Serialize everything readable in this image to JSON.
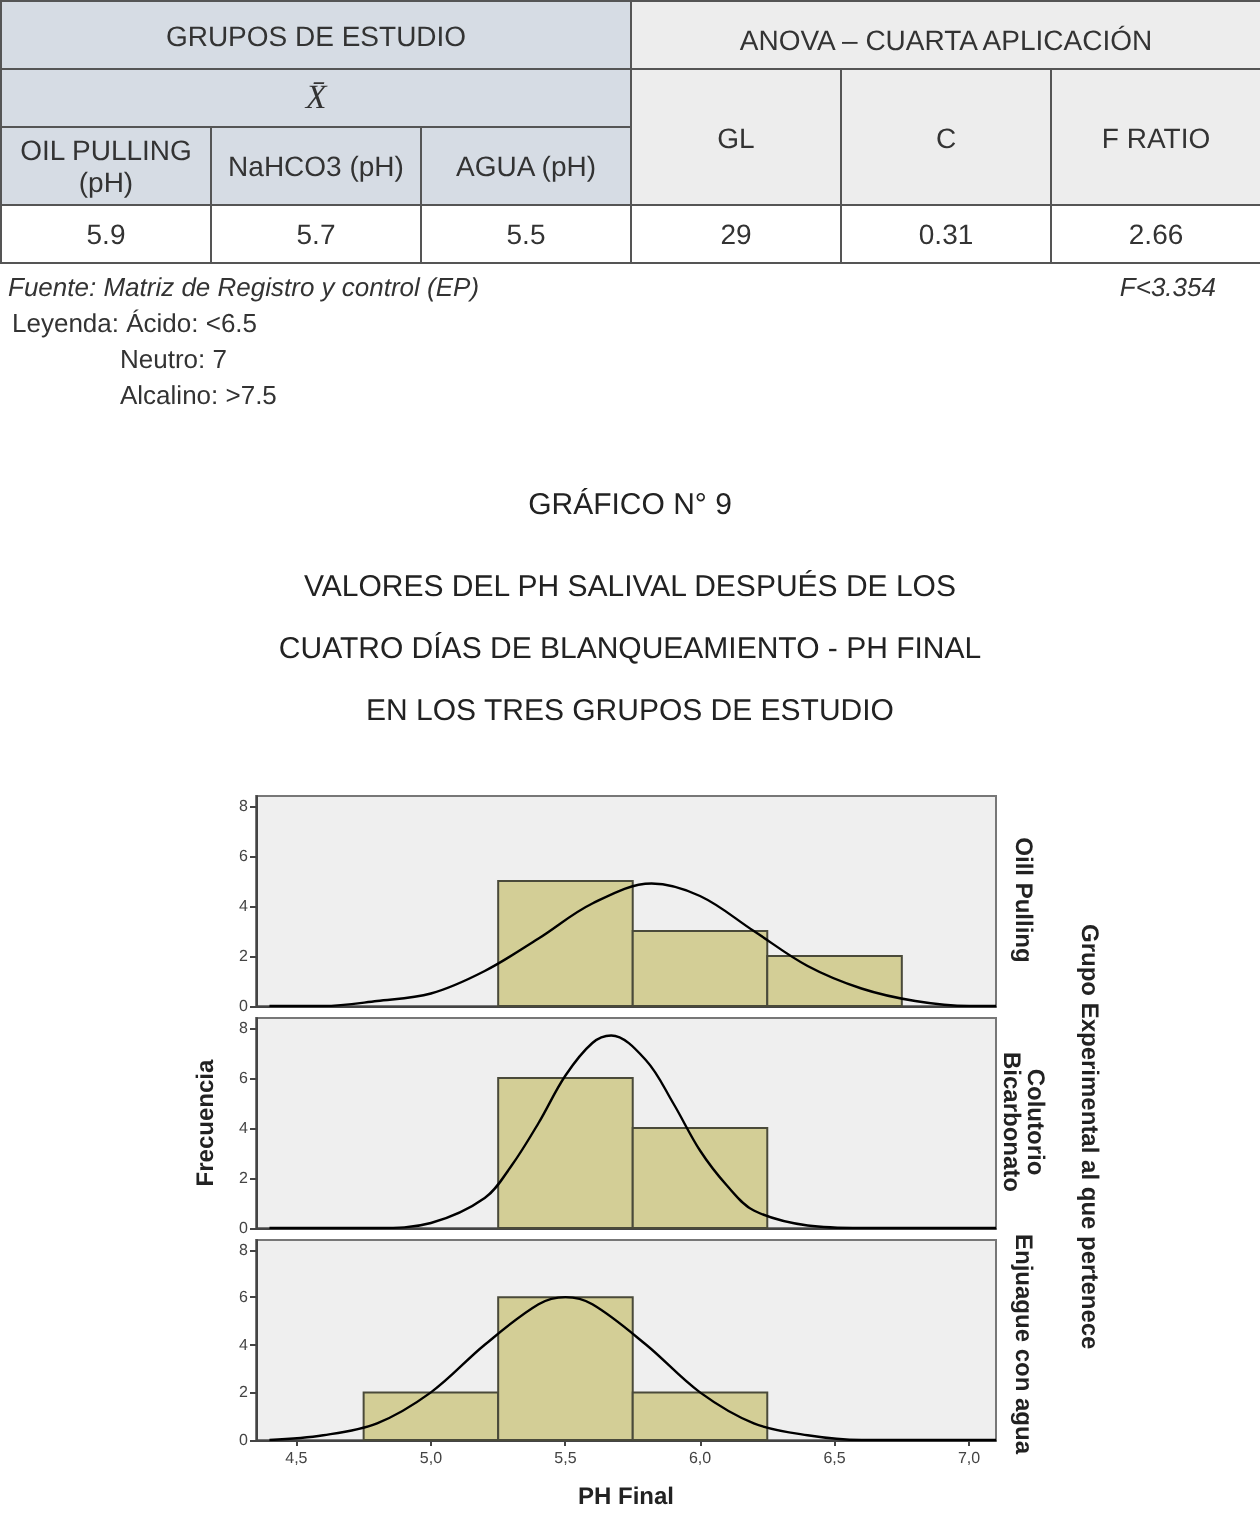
{
  "chart_data": [
    {
      "type": "other",
      "annotations": [
        "GRUPOS DE ESTUDIO",
        "ANOVA – CUARTA APLICACIÓN",
        "X̄",
        "OIL PULLING (pH)",
        "NaHCO3 (pH)",
        "AGUA (pH)",
        "GL",
        "C",
        "F RATIO",
        "5.9",
        "5.7",
        "5.5",
        "29",
        "0.31",
        "2.66",
        "Fuente: Matriz de Registro y control (EP)",
        "F<3.354",
        "Leyenda: Ácido: <6.5",
        "Neutro: 7",
        "Alcalino: >7.5"
      ]
    },
    {
      "type": "histogram",
      "title": "GRÁFICO N° 9",
      "subtitle": "VALORES DEL PH SALIVAL DESPUÉS DE LOS\nCUATRO DÍAS DE BLANQUEAMIENTO - PH FINAL\nEN LOS TRES GRUPOS DE ESTUDIO",
      "y2label": "Oill Pulling",
      "bins": [
        5.25,
        5.75,
        6.25,
        6.75
      ],
      "values": [
        5,
        3,
        2
      ],
      "color": "#d3ce96",
      "series": [
        {
          "type": "line",
          "color": "#000000",
          "x": [
            4.4,
            4.6,
            4.8,
            5.0,
            5.2,
            5.4,
            5.6,
            5.82,
            6.0,
            6.2,
            6.4,
            6.6,
            6.8,
            7.0,
            7.1
          ],
          "values": [
            0,
            0,
            0.2,
            0.5,
            1.4,
            2.7,
            4.1,
            4.9,
            4.4,
            3.0,
            1.6,
            0.7,
            0.2,
            0,
            0
          ]
        }
      ],
      "xlim": [
        4.35,
        7.1
      ],
      "ylim": [
        0,
        8.4
      ],
      "yticks": [
        0,
        2,
        4,
        6,
        8
      ],
      "tick_labels": "y",
      "marker": "none"
    },
    {
      "type": "histogram",
      "ylabel": "Frecuencia",
      "y2label": "Colutorio\nBicarbonato",
      "annotations": [
        "Grupo Experimental al que pertenece"
      ],
      "bins": [
        5.25,
        5.75,
        6.25
      ],
      "values": [
        6,
        4
      ],
      "color": "#d3ce96",
      "series": [
        {
          "type": "line",
          "color": "#000000",
          "x": [
            4.4,
            4.8,
            5.0,
            5.2,
            5.3,
            5.4,
            5.5,
            5.6,
            5.67,
            5.8,
            5.9,
            6.0,
            6.1,
            6.2,
            6.4,
            6.6,
            7.1
          ],
          "values": [
            0,
            0,
            0.2,
            1.2,
            2.5,
            4.2,
            6.1,
            7.4,
            7.7,
            6.7,
            5.0,
            3.1,
            1.7,
            0.7,
            0.1,
            0,
            0
          ]
        }
      ],
      "xlim": [
        4.35,
        7.1
      ],
      "ylim": [
        0,
        8.4
      ],
      "yticks": [
        0,
        2,
        4,
        6,
        8
      ],
      "tick_labels": "y",
      "marker": "none"
    },
    {
      "type": "histogram",
      "xlabel": "PH Final",
      "y2label": "Enjuague con agua",
      "bins": [
        4.75,
        5.25,
        5.75,
        6.25
      ],
      "values": [
        2,
        6,
        2
      ],
      "color": "#d3ce96",
      "series": [
        {
          "type": "line",
          "color": "#000000",
          "x": [
            4.4,
            4.6,
            4.8,
            5.0,
            5.2,
            5.4,
            5.5,
            5.6,
            5.8,
            6.0,
            6.2,
            6.4,
            6.6,
            7.0,
            7.1
          ],
          "values": [
            0,
            0.2,
            0.7,
            2.0,
            4.0,
            5.7,
            6.0,
            5.7,
            4.0,
            2.0,
            0.7,
            0.2,
            0,
            0,
            0
          ]
        }
      ],
      "xlim": [
        4.35,
        7.1
      ],
      "ylim": [
        0,
        8.4
      ],
      "yticks": [
        0,
        2,
        4,
        6,
        8
      ],
      "xticks": [
        {
          "value": 4.5,
          "label": "4,5"
        },
        {
          "value": 5.0,
          "label": "5,0"
        },
        {
          "value": 5.5,
          "label": "5,5"
        },
        {
          "value": 6.0,
          "label": "6,0"
        },
        {
          "value": 6.5,
          "label": "6,5"
        },
        {
          "value": 7.0,
          "label": "7,0"
        }
      ],
      "marker": "none"
    }
  ]
}
